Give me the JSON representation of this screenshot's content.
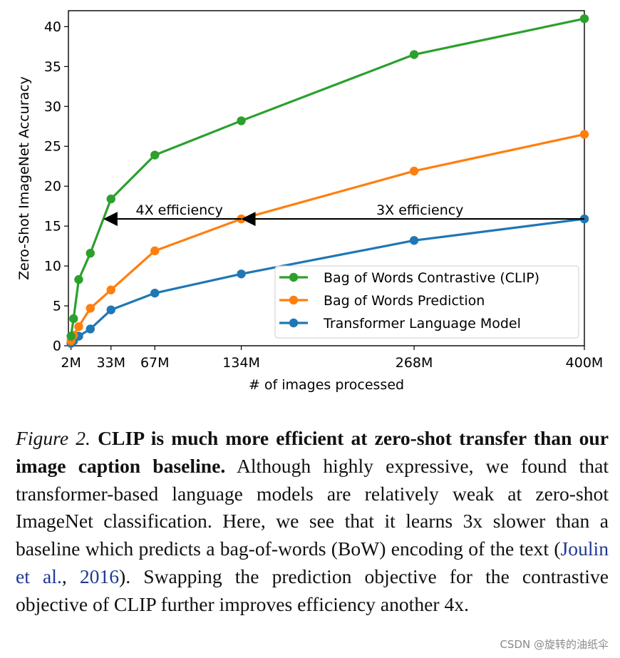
{
  "chart_data": {
    "type": "line",
    "xlabel": "# of images processed",
    "ylabel": "Zero-Shot ImageNet Accuracy",
    "xlim": [
      0,
      400
    ],
    "ylim": [
      0,
      42
    ],
    "x_ticks": [
      {
        "value": 2,
        "label": "2M"
      },
      {
        "value": 33,
        "label": "33M"
      },
      {
        "value": 67,
        "label": "67M"
      },
      {
        "value": 134,
        "label": "134M"
      },
      {
        "value": 268,
        "label": "268M"
      },
      {
        "value": 400,
        "label": "400M"
      }
    ],
    "y_ticks": [
      0,
      5,
      10,
      15,
      20,
      25,
      30,
      35,
      40
    ],
    "legend_position": "lower-right",
    "series": [
      {
        "name": "Bag of Words Contrastive (CLIP)",
        "color": "#2ca02c",
        "x": [
          2,
          4,
          8,
          17,
          33,
          67,
          134,
          268,
          400
        ],
        "y": [
          1.2,
          3.4,
          8.3,
          11.6,
          18.4,
          23.9,
          28.2,
          36.5,
          41.0
        ]
      },
      {
        "name": "Bag of Words Prediction",
        "color": "#ff7f0e",
        "x": [
          2,
          4,
          8,
          17,
          33,
          67,
          134,
          268,
          400
        ],
        "y": [
          0.6,
          1.3,
          2.4,
          4.7,
          7.0,
          11.9,
          15.9,
          21.9,
          26.5
        ]
      },
      {
        "name": "Transformer Language Model",
        "color": "#1f77b4",
        "x": [
          2,
          4,
          8,
          17,
          33,
          67,
          134,
          268,
          400
        ],
        "y": [
          0.3,
          0.6,
          1.2,
          2.1,
          4.5,
          6.6,
          9.0,
          13.2,
          15.9
        ]
      }
    ],
    "annotations": [
      {
        "text": "4X efficiency",
        "from_x": 134,
        "to_x": 27,
        "y": 15.9
      },
      {
        "text": "3X efficiency",
        "from_x": 400,
        "to_x": 134,
        "y": 15.9
      }
    ]
  },
  "caption": {
    "figure_label": "Figure 2.",
    "bold_text": "CLIP is much more efficient at zero-shot transfer than our image caption baseline.",
    "text_before_citation": "Although highly expressive, we found that transformer-based language models are relatively weak at zero-shot ImageNet classification. Here, we see that it learns 3x slower than a baseline which predicts a bag-of-words (BoW) encoding of the text (",
    "citation_author": "Joulin et al.",
    "citation_sep": ", ",
    "citation_year": "2016",
    "text_after_citation": "). Swapping the prediction objective for the contrastive objective of CLIP further improves efficiency another 4x."
  },
  "watermark": "CSDN @旋转的油纸伞"
}
